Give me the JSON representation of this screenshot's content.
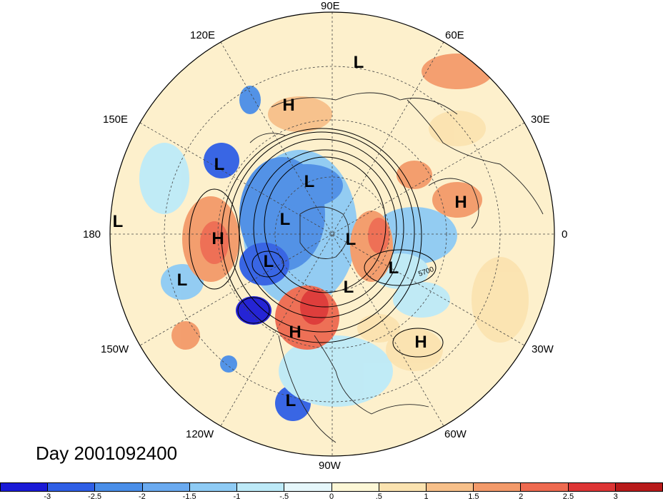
{
  "title": "Day 2001092400",
  "lon_labels": [
    {
      "id": "lon-90e",
      "text": "90E"
    },
    {
      "id": "lon-120e",
      "text": "120E"
    },
    {
      "id": "lon-60e",
      "text": "60E"
    },
    {
      "id": "lon-150e",
      "text": "150E"
    },
    {
      "id": "lon-30e",
      "text": "30E"
    },
    {
      "id": "lon-180",
      "text": "180"
    },
    {
      "id": "lon-0",
      "text": "0"
    },
    {
      "id": "lon-150w",
      "text": "150W"
    },
    {
      "id": "lon-30w",
      "text": "30W"
    },
    {
      "id": "lon-120w",
      "text": "120W"
    },
    {
      "id": "lon-60w",
      "text": "60W"
    },
    {
      "id": "lon-90w",
      "text": "90W"
    }
  ],
  "pressure_centers": [
    {
      "id": "c1",
      "text": "L"
    },
    {
      "id": "c2",
      "text": "H"
    },
    {
      "id": "c3",
      "text": "L"
    },
    {
      "id": "c4",
      "text": "L"
    },
    {
      "id": "c5",
      "text": "H"
    },
    {
      "id": "c6",
      "text": "L"
    },
    {
      "id": "c7",
      "text": "H"
    },
    {
      "id": "c8",
      "text": "L"
    },
    {
      "id": "c9",
      "text": "L"
    },
    {
      "id": "c10",
      "text": "L"
    },
    {
      "id": "c11",
      "text": "L"
    },
    {
      "id": "c12",
      "text": "L"
    },
    {
      "id": "c13",
      "text": "L"
    },
    {
      "id": "c14",
      "text": "H"
    },
    {
      "id": "c15",
      "text": "H"
    },
    {
      "id": "c16",
      "text": "L"
    }
  ],
  "contour_label": "5700",
  "colorbar": {
    "colors": [
      "#1a1ad6",
      "#2f5fe6",
      "#4a8ee8",
      "#6aaaf0",
      "#8ecbf5",
      "#bdeaf8",
      "#e6f7fb",
      "#fdf7d6",
      "#fbe3b0",
      "#f7c08a",
      "#f39a6a",
      "#ee6a50",
      "#dd3535",
      "#b81a1a"
    ],
    "ticks": [
      "-3",
      "-2.5",
      "-2",
      "-1.5",
      "-1",
      "-.5",
      "0",
      ".5",
      "1",
      "1.5",
      "2",
      "2.5",
      "3"
    ]
  }
}
